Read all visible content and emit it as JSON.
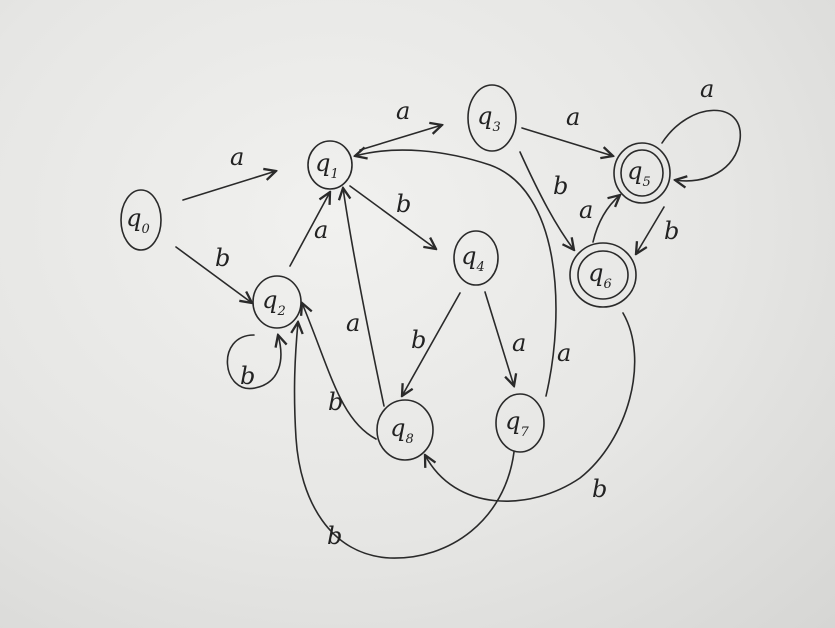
{
  "diagram": {
    "states": [
      {
        "id": "q0",
        "base": "q",
        "sub": "0"
      },
      {
        "id": "q1",
        "base": "q",
        "sub": "1"
      },
      {
        "id": "q2",
        "base": "q",
        "sub": "2"
      },
      {
        "id": "q3",
        "base": "q",
        "sub": "3"
      },
      {
        "id": "q4",
        "base": "q",
        "sub": "4"
      },
      {
        "id": "q5",
        "base": "q",
        "sub": "5",
        "accepting": true
      },
      {
        "id": "q6",
        "base": "q",
        "sub": "6",
        "accepting": true
      },
      {
        "id": "q7",
        "base": "q",
        "sub": "7"
      },
      {
        "id": "q8",
        "base": "q",
        "sub": "8"
      }
    ],
    "transitions": [
      {
        "from": "q0",
        "to": "q1",
        "symbol": "a"
      },
      {
        "from": "q0",
        "to": "q2",
        "symbol": "b"
      },
      {
        "from": "q2",
        "to": "q2",
        "symbol": "b"
      },
      {
        "from": "q2",
        "to": "q1",
        "symbol": "a"
      },
      {
        "from": "q1",
        "to": "q3",
        "symbol": "a"
      },
      {
        "from": "q1",
        "to": "q4",
        "symbol": "b"
      },
      {
        "from": "q3",
        "to": "q5",
        "symbol": "a"
      },
      {
        "from": "q3",
        "to": "q6",
        "symbol": "b"
      },
      {
        "from": "q5",
        "to": "q5",
        "symbol": "a"
      },
      {
        "from": "q5",
        "to": "q6",
        "symbol": "b"
      },
      {
        "from": "q6",
        "to": "q5",
        "symbol": "a"
      },
      {
        "from": "q6",
        "to": "q8",
        "symbol": "b"
      },
      {
        "from": "q4",
        "to": "q8",
        "symbol": "b"
      },
      {
        "from": "q4",
        "to": "q7",
        "symbol": "a"
      },
      {
        "from": "q7",
        "to": "q1",
        "symbol": "a"
      },
      {
        "from": "q7",
        "to": "q2",
        "symbol": "b"
      },
      {
        "from": "q8",
        "to": "q1",
        "symbol": "a"
      },
      {
        "from": "q8",
        "to": "q2",
        "symbol": "b"
      }
    ]
  }
}
